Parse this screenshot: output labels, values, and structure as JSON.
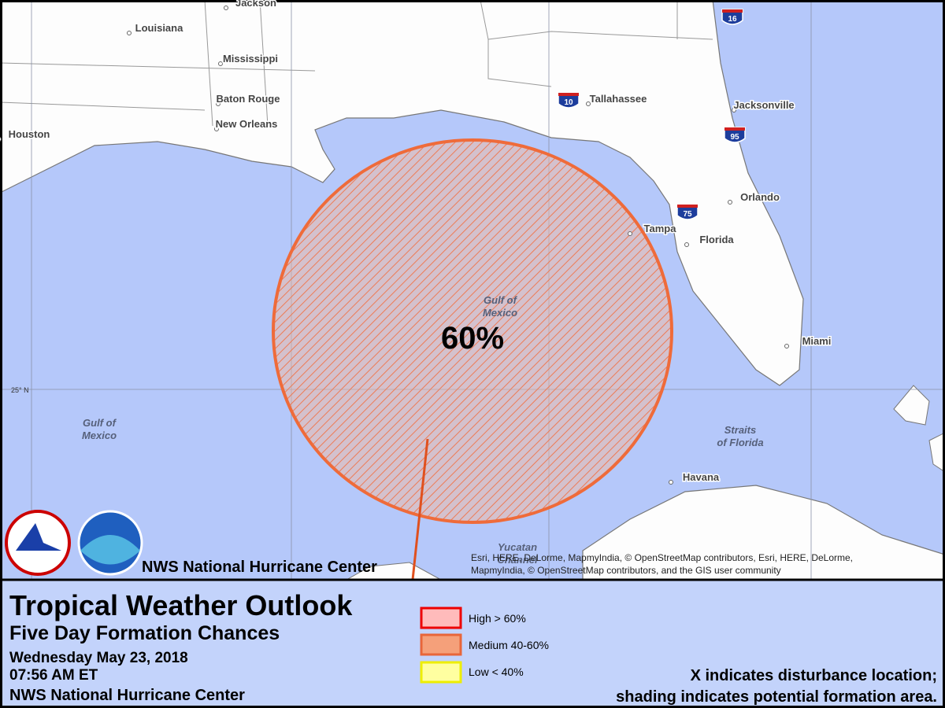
{
  "map": {
    "places": [
      {
        "label": "Jackson"
      },
      {
        "label": "Louisiana"
      },
      {
        "label": "Mississippi"
      },
      {
        "label": "Baton Rouge"
      },
      {
        "label": "New Orleans"
      },
      {
        "label": "Houston"
      },
      {
        "label": "Tallahassee"
      },
      {
        "label": "Jacksonville"
      },
      {
        "label": "Orlando"
      },
      {
        "label": "Tampa"
      },
      {
        "label": "Florida"
      },
      {
        "label": "Miami"
      },
      {
        "label": "Havana"
      }
    ],
    "water_labels": [
      {
        "label": "Gulf of"
      },
      {
        "label": "Mexico"
      },
      {
        "label": "Gulf of"
      },
      {
        "label": "Mexico"
      },
      {
        "label": "Straits"
      },
      {
        "label": "of Florida"
      },
      {
        "label": "Yucatan"
      },
      {
        "label": "Channel"
      }
    ],
    "shields": [
      {
        "label": "16"
      },
      {
        "label": "10"
      },
      {
        "label": "95"
      },
      {
        "label": "75"
      }
    ],
    "lat_label": "25° N",
    "area": {
      "label": "60%"
    },
    "credit": "NWS National Hurricane Center",
    "attribution": [
      "Esri, HERE, DeLorme, MapmyIndia, © OpenStreetMap contributors, Esri, HERE, DeLorme,",
      "MapmyIndia, © OpenStreetMap contributors, and the GIS user community"
    ]
  },
  "header": {
    "title": "Tropical Weather Outlook",
    "subtitle": "Five Day Formation Chances",
    "date": "Wednesday May 23, 2018",
    "time": "07:56 AM ET",
    "office": "NWS National Hurricane Center"
  },
  "legend": [
    {
      "label": "High > 60%"
    },
    {
      "label": "Medium 40-60%"
    },
    {
      "label": "Low < 40%"
    }
  ],
  "notes": [
    "X indicates disturbance location;",
    "shading indicates potential formation area."
  ]
}
